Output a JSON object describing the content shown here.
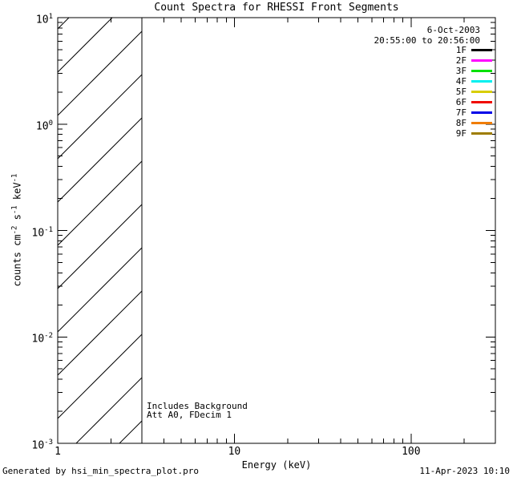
{
  "chart_data": {
    "type": "line",
    "title": "Count Spectra for RHESSI Front Segments",
    "xlabel": "Energy (keV)",
    "ylabel_parts": {
      "t1": "counts cm",
      "s1": "-2",
      "t2": " s",
      "s2": "-1",
      "t3": " keV",
      "s3": "-1"
    },
    "xscale": "log",
    "yscale": "log",
    "xlim": [
      1,
      300
    ],
    "ylim": [
      0.001,
      10
    ],
    "x_ticks": {
      "major": [
        1,
        10,
        100
      ],
      "labels": [
        "1",
        "10",
        "100"
      ]
    },
    "y_ticks": {
      "base": "10",
      "exponents": [
        "1",
        "0",
        "-1",
        "-2",
        "-3"
      ]
    },
    "grid": false,
    "series": [],
    "hatch_region": {
      "x_from": 1,
      "x_to": 3,
      "pattern": "diagonal-lines",
      "spacing_px": 54,
      "slope": 1
    },
    "header": {
      "date": "6-Oct-2003",
      "time_range": "20:55:00 to 20:56:00"
    },
    "legend": {
      "position": "upper-right",
      "entries": [
        {
          "label": "1F",
          "color": "#000000"
        },
        {
          "label": "2F",
          "color": "#ff00ff"
        },
        {
          "label": "3F",
          "color": "#00e100"
        },
        {
          "label": "4F",
          "color": "#00f0f0"
        },
        {
          "label": "5F",
          "color": "#d8cd00"
        },
        {
          "label": "6F",
          "color": "#f00800"
        },
        {
          "label": "7F",
          "color": "#0000e8"
        },
        {
          "label": "8F",
          "color": "#f07d00"
        },
        {
          "label": "9F",
          "color": "#9e7d00"
        }
      ]
    },
    "annotations": {
      "line1": "Includes Background",
      "line2": "Att A0, FDecim 1"
    },
    "foreground": "#000000",
    "background": "#ffffff"
  },
  "footer": {
    "left": "Generated by hsi_min_spectra_plot.pro",
    "right": "11-Apr-2023 10:10"
  }
}
